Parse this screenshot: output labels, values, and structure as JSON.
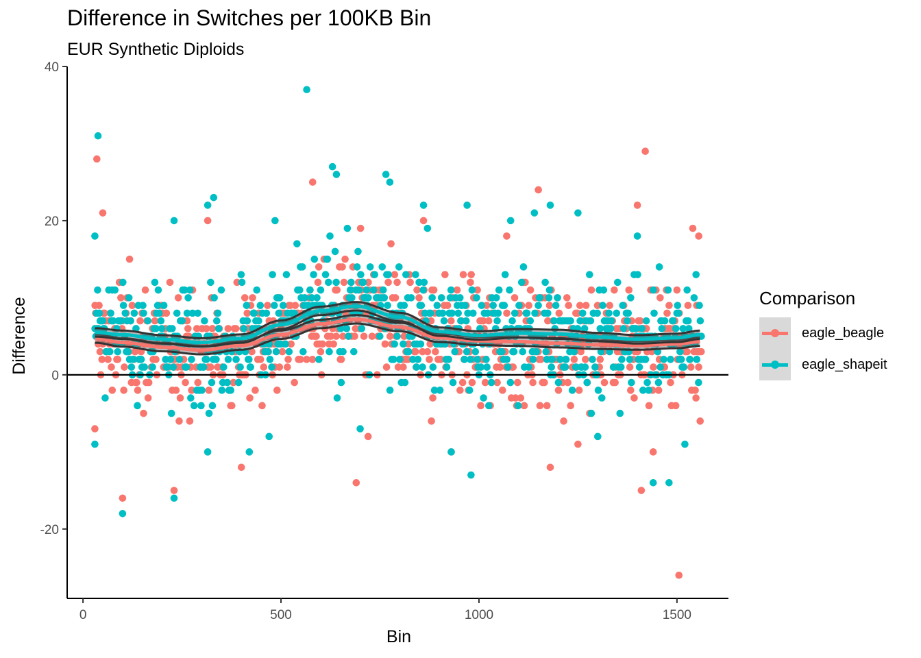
{
  "chart_data": {
    "type": "scatter",
    "title": "Difference in Switches per 100KB Bin",
    "subtitle": "EUR Synthetic Diploids",
    "xlabel": "Bin",
    "ylabel": "Difference",
    "xlim": [
      -40,
      1630
    ],
    "ylim": [
      -29,
      40
    ],
    "x_ticks": [
      0,
      500,
      1000,
      1500
    ],
    "y_ticks": [
      -20,
      0,
      20,
      40
    ],
    "reference_line_y": 0,
    "grid": false,
    "legend": {
      "title": "Comparison",
      "position": "right"
    },
    "series": [
      {
        "name": "eagle_beagle",
        "color": "#F8766D",
        "smooth": {
          "x": [
            32,
            100,
            200,
            300,
            400,
            500,
            600,
            690,
            800,
            900,
            1000,
            1100,
            1200,
            1300,
            1400,
            1500,
            1560
          ],
          "y": [
            4.7,
            4.2,
            3.6,
            3.2,
            3.8,
            5.2,
            6.6,
            7.2,
            6.2,
            4.8,
            4.4,
            4.3,
            4.1,
            3.9,
            3.8,
            4.0,
            4.3
          ]
        },
        "outliers": [
          [
            35,
            28
          ],
          [
            50,
            21
          ],
          [
            30,
            -7
          ],
          [
            100,
            -16
          ],
          [
            230,
            -15
          ],
          [
            315,
            20
          ],
          [
            400,
            -12
          ],
          [
            580,
            25
          ],
          [
            690,
            -14
          ],
          [
            720,
            -8
          ],
          [
            860,
            20
          ],
          [
            880,
            -6
          ],
          [
            930,
            -10
          ],
          [
            1070,
            18
          ],
          [
            1150,
            24
          ],
          [
            1180,
            -12
          ],
          [
            1250,
            -9
          ],
          [
            1410,
            -15
          ],
          [
            1420,
            29
          ],
          [
            1400,
            22
          ],
          [
            1440,
            -10
          ],
          [
            1505,
            -26
          ],
          [
            1540,
            19
          ],
          [
            1555,
            18
          ]
        ]
      },
      {
        "name": "eagle_shapeit",
        "color": "#00BFC4",
        "smooth": {
          "x": [
            32,
            100,
            200,
            300,
            400,
            500,
            600,
            690,
            800,
            900,
            1000,
            1100,
            1200,
            1300,
            1400,
            1500,
            1560
          ],
          "y": [
            5.5,
            5.2,
            4.6,
            4.2,
            4.7,
            6.5,
            8.3,
            8.9,
            7.5,
            5.6,
            5.1,
            5.4,
            5.3,
            4.9,
            4.6,
            4.8,
            5.2
          ]
        },
        "outliers": [
          [
            38,
            31
          ],
          [
            30,
            18
          ],
          [
            30,
            -9
          ],
          [
            100,
            -18
          ],
          [
            230,
            -16
          ],
          [
            230,
            20
          ],
          [
            315,
            22
          ],
          [
            330,
            23
          ],
          [
            315,
            -10
          ],
          [
            420,
            -10
          ],
          [
            470,
            -8
          ],
          [
            485,
            20
          ],
          [
            565,
            37
          ],
          [
            630,
            27
          ],
          [
            640,
            26
          ],
          [
            700,
            -7
          ],
          [
            765,
            26
          ],
          [
            775,
            25
          ],
          [
            860,
            22
          ],
          [
            870,
            19
          ],
          [
            930,
            -10
          ],
          [
            970,
            22
          ],
          [
            980,
            -13
          ],
          [
            1080,
            20
          ],
          [
            1140,
            21
          ],
          [
            1180,
            22
          ],
          [
            1250,
            21
          ],
          [
            1300,
            -8
          ],
          [
            1400,
            18
          ],
          [
            1440,
            -14
          ],
          [
            1480,
            -14
          ],
          [
            1520,
            -9
          ]
        ]
      }
    ]
  }
}
